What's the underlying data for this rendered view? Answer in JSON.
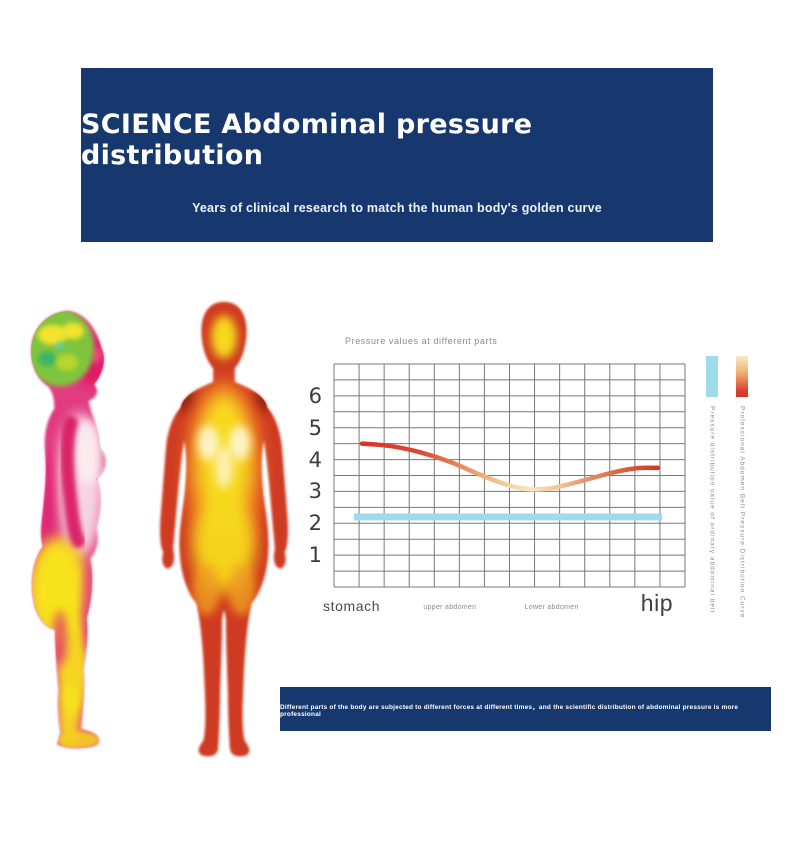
{
  "header": {
    "title": "SCIENCE Abdominal pressure distribution",
    "subtitle": "Years of clinical research to match the human body's golden curve",
    "bg_color": "#17386e"
  },
  "chart_data": {
    "type": "line",
    "title": "Pressure values at different parts",
    "x_labels": [
      {
        "label": "stomach",
        "pos": 0.05,
        "size": "medium"
      },
      {
        "label": "upper abdomen",
        "pos": 0.33,
        "size": "small"
      },
      {
        "label": "Lower abdomen",
        "pos": 0.62,
        "size": "small"
      },
      {
        "label": "hip",
        "pos": 0.92,
        "size": "large"
      }
    ],
    "yticks": [
      6,
      5,
      4,
      3,
      2,
      1
    ],
    "ylim": [
      0,
      7
    ],
    "grid": {
      "on": true,
      "cols": 14,
      "rows": 14,
      "color": "#787878"
    },
    "series": [
      {
        "name": "Professional Abdomen Belt Pressure Distribution Curve",
        "type": "smooth-line",
        "points": [
          {
            "x": 0.0,
            "v": 4.5
          },
          {
            "x": 0.1,
            "v": 4.42
          },
          {
            "x": 0.2,
            "v": 4.22
          },
          {
            "x": 0.3,
            "v": 3.92
          },
          {
            "x": 0.4,
            "v": 3.52
          },
          {
            "x": 0.5,
            "v": 3.18
          },
          {
            "x": 0.57,
            "v": 3.07
          },
          {
            "x": 0.65,
            "v": 3.12
          },
          {
            "x": 0.75,
            "v": 3.35
          },
          {
            "x": 0.85,
            "v": 3.6
          },
          {
            "x": 0.93,
            "v": 3.73
          },
          {
            "x": 1.0,
            "v": 3.74
          }
        ],
        "gradient_stops": [
          {
            "offset": 0,
            "color": "#d43528"
          },
          {
            "offset": 0.2,
            "color": "#d94a32"
          },
          {
            "offset": 0.38,
            "color": "#eda06f"
          },
          {
            "offset": 0.5,
            "color": "#f4d5a0"
          },
          {
            "offset": 0.57,
            "color": "#f6e7bb"
          },
          {
            "offset": 0.67,
            "color": "#f0c292"
          },
          {
            "offset": 0.78,
            "color": "#e48a5d"
          },
          {
            "offset": 0.9,
            "color": "#d95a3a"
          },
          {
            "offset": 1,
            "color": "#d43528"
          }
        ]
      },
      {
        "name": "Pressure distribution value of ordinary abdominal belt",
        "type": "flat-line",
        "value": 2.2,
        "color": "#9edceb"
      }
    ],
    "legend_position": "right-vertical",
    "legend": [
      {
        "label": "Pressure distribution value of ordinary abdominal belt",
        "swatch": "solid",
        "color": "#9edceb"
      },
      {
        "label": "Professional Abdomen Belt Pressure Distribution Curve",
        "swatch": "gradient",
        "colors": [
          "#f7ecc4",
          "#d43528"
        ]
      }
    ]
  },
  "figures": {
    "side_body": "thermal heat-map of human body, side view",
    "front_body": "thermal heat-map of human body, front view"
  },
  "footer": {
    "text": "Different parts of the body are subjected to different forces at different times，and the scientific distribution of abdominal pressure is more professional",
    "bg_color": "#17386e"
  }
}
